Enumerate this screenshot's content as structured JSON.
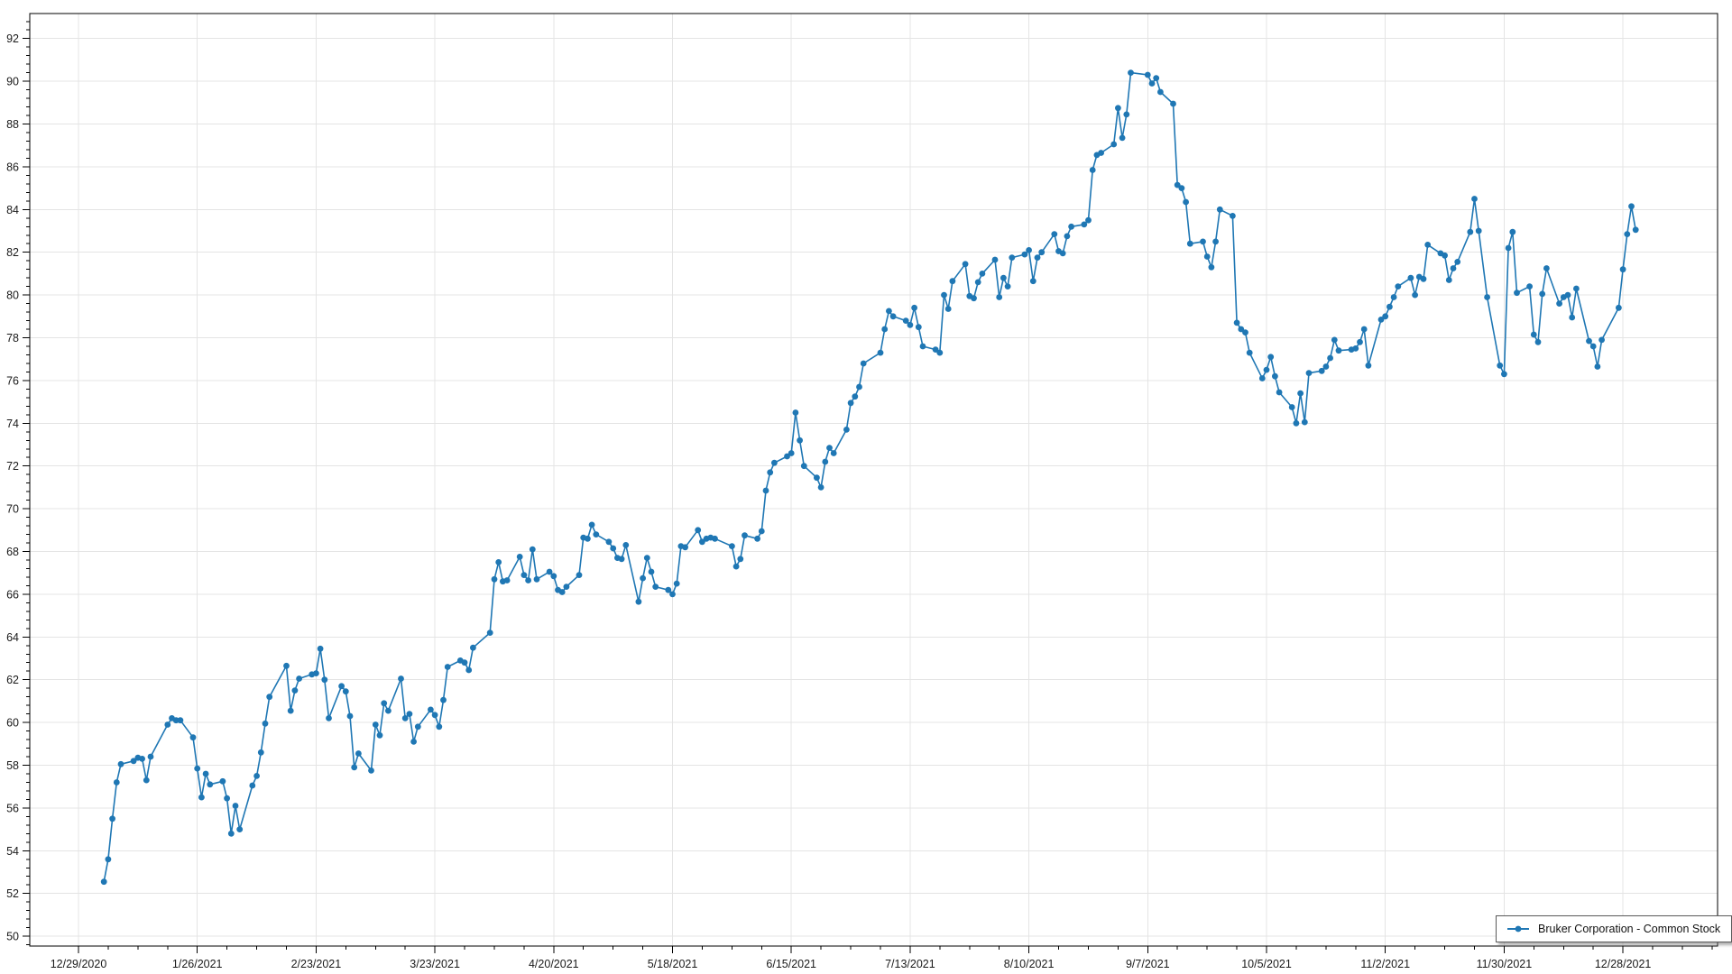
{
  "chart_data": {
    "type": "line",
    "title": "",
    "xlabel": "",
    "ylabel": "",
    "grid": true,
    "legend_position": "bottom-right",
    "x_axis": {
      "start_date": "2020-12-29",
      "tick_interval_days": 28,
      "minor_tick_interval_days": 7,
      "tick_labels": [
        "12/29/2020",
        "1/26/2021",
        "2/23/2021",
        "3/23/2021",
        "4/20/2021",
        "5/18/2021",
        "6/15/2021",
        "7/13/2021",
        "8/10/2021",
        "9/7/2021",
        "10/5/2021",
        "11/2/2021",
        "11/30/2021",
        "12/28/2021"
      ]
    },
    "y_axis": {
      "min": 49.54,
      "max": 93.17,
      "tick_min": 50,
      "tick_max": 92,
      "tick_step": 2,
      "minor_tick_step": 0.4,
      "tick_labels": [
        "50",
        "52",
        "54",
        "56",
        "58",
        "60",
        "62",
        "64",
        "66",
        "68",
        "70",
        "72",
        "74",
        "76",
        "78",
        "80",
        "82",
        "84",
        "86",
        "88",
        "90",
        "92"
      ]
    },
    "series": [
      {
        "name": "Bruker Corporation - Common Stock",
        "color": "#1f77b4",
        "marker": "circle",
        "points": [
          [
            "2021-01-04",
            52.55
          ],
          [
            "2021-01-05",
            53.6
          ],
          [
            "2021-01-06",
            55.5
          ],
          [
            "2021-01-07",
            57.2
          ],
          [
            "2021-01-08",
            58.05
          ],
          [
            "2021-01-11",
            58.2
          ],
          [
            "2021-01-12",
            58.35
          ],
          [
            "2021-01-13",
            58.3
          ],
          [
            "2021-01-14",
            57.3
          ],
          [
            "2021-01-15",
            58.4
          ],
          [
            "2021-01-19",
            59.9
          ],
          [
            "2021-01-20",
            60.2
          ],
          [
            "2021-01-21",
            60.1
          ],
          [
            "2021-01-22",
            60.1
          ],
          [
            "2021-01-25",
            59.3
          ],
          [
            "2021-01-26",
            57.85
          ],
          [
            "2021-01-27",
            56.5
          ],
          [
            "2021-01-28",
            57.6
          ],
          [
            "2021-01-29",
            57.1
          ],
          [
            "2021-02-01",
            57.25
          ],
          [
            "2021-02-02",
            56.45
          ],
          [
            "2021-02-03",
            54.8
          ],
          [
            "2021-02-04",
            56.1
          ],
          [
            "2021-02-05",
            55.0
          ],
          [
            "2021-02-08",
            57.05
          ],
          [
            "2021-02-09",
            57.5
          ],
          [
            "2021-02-10",
            58.6
          ],
          [
            "2021-02-11",
            59.95
          ],
          [
            "2021-02-12",
            61.2
          ],
          [
            "2021-02-16",
            62.65
          ],
          [
            "2021-02-17",
            60.55
          ],
          [
            "2021-02-18",
            61.5
          ],
          [
            "2021-02-19",
            62.05
          ],
          [
            "2021-02-22",
            62.25
          ],
          [
            "2021-02-23",
            62.3
          ],
          [
            "2021-02-24",
            63.45
          ],
          [
            "2021-02-25",
            62.0
          ],
          [
            "2021-02-26",
            60.2
          ],
          [
            "2021-03-01",
            61.7
          ],
          [
            "2021-03-02",
            61.45
          ],
          [
            "2021-03-03",
            60.3
          ],
          [
            "2021-03-04",
            57.9
          ],
          [
            "2021-03-05",
            58.55
          ],
          [
            "2021-03-08",
            57.75
          ],
          [
            "2021-03-09",
            59.9
          ],
          [
            "2021-03-10",
            59.4
          ],
          [
            "2021-03-11",
            60.9
          ],
          [
            "2021-03-12",
            60.55
          ],
          [
            "2021-03-15",
            62.05
          ],
          [
            "2021-03-16",
            60.2
          ],
          [
            "2021-03-17",
            60.4
          ],
          [
            "2021-03-18",
            59.1
          ],
          [
            "2021-03-19",
            59.8
          ],
          [
            "2021-03-22",
            60.6
          ],
          [
            "2021-03-23",
            60.35
          ],
          [
            "2021-03-24",
            59.8
          ],
          [
            "2021-03-25",
            61.05
          ],
          [
            "2021-03-26",
            62.6
          ],
          [
            "2021-03-29",
            62.9
          ],
          [
            "2021-03-30",
            62.8
          ],
          [
            "2021-03-31",
            62.45
          ],
          [
            "2021-04-01",
            63.5
          ],
          [
            "2021-04-05",
            64.2
          ],
          [
            "2021-04-06",
            66.7
          ],
          [
            "2021-04-07",
            67.5
          ],
          [
            "2021-04-08",
            66.6
          ],
          [
            "2021-04-09",
            66.65
          ],
          [
            "2021-04-12",
            67.75
          ],
          [
            "2021-04-13",
            66.9
          ],
          [
            "2021-04-14",
            66.65
          ],
          [
            "2021-04-15",
            68.1
          ],
          [
            "2021-04-16",
            66.7
          ],
          [
            "2021-04-19",
            67.05
          ],
          [
            "2021-04-20",
            66.85
          ],
          [
            "2021-04-21",
            66.2
          ],
          [
            "2021-04-22",
            66.1
          ],
          [
            "2021-04-23",
            66.35
          ],
          [
            "2021-04-26",
            66.9
          ],
          [
            "2021-04-27",
            68.65
          ],
          [
            "2021-04-28",
            68.6
          ],
          [
            "2021-04-29",
            69.25
          ],
          [
            "2021-04-30",
            68.8
          ],
          [
            "2021-05-03",
            68.45
          ],
          [
            "2021-05-04",
            68.15
          ],
          [
            "2021-05-05",
            67.7
          ],
          [
            "2021-05-06",
            67.65
          ],
          [
            "2021-05-07",
            68.3
          ],
          [
            "2021-05-10",
            65.65
          ],
          [
            "2021-05-11",
            66.75
          ],
          [
            "2021-05-12",
            67.7
          ],
          [
            "2021-05-13",
            67.05
          ],
          [
            "2021-05-14",
            66.35
          ],
          [
            "2021-05-17",
            66.2
          ],
          [
            "2021-05-18",
            66.0
          ],
          [
            "2021-05-19",
            66.5
          ],
          [
            "2021-05-20",
            68.25
          ],
          [
            "2021-05-21",
            68.2
          ],
          [
            "2021-05-24",
            69.0
          ],
          [
            "2021-05-25",
            68.45
          ],
          [
            "2021-05-26",
            68.6
          ],
          [
            "2021-05-27",
            68.65
          ],
          [
            "2021-05-28",
            68.6
          ],
          [
            "2021-06-01",
            68.25
          ],
          [
            "2021-06-02",
            67.3
          ],
          [
            "2021-06-03",
            67.65
          ],
          [
            "2021-06-04",
            68.75
          ],
          [
            "2021-06-07",
            68.6
          ],
          [
            "2021-06-08",
            68.95
          ],
          [
            "2021-06-09",
            70.85
          ],
          [
            "2021-06-10",
            71.7
          ],
          [
            "2021-06-11",
            72.15
          ],
          [
            "2021-06-14",
            72.45
          ],
          [
            "2021-06-15",
            72.6
          ],
          [
            "2021-06-16",
            74.5
          ],
          [
            "2021-06-17",
            73.2
          ],
          [
            "2021-06-18",
            72.0
          ],
          [
            "2021-06-21",
            71.45
          ],
          [
            "2021-06-22",
            71.0
          ],
          [
            "2021-06-23",
            72.2
          ],
          [
            "2021-06-24",
            72.85
          ],
          [
            "2021-06-25",
            72.6
          ],
          [
            "2021-06-28",
            73.7
          ],
          [
            "2021-06-29",
            74.95
          ],
          [
            "2021-06-30",
            75.25
          ],
          [
            "2021-07-01",
            75.7
          ],
          [
            "2021-07-02",
            76.8
          ],
          [
            "2021-07-06",
            77.3
          ],
          [
            "2021-07-07",
            78.4
          ],
          [
            "2021-07-08",
            79.25
          ],
          [
            "2021-07-09",
            79.0
          ],
          [
            "2021-07-12",
            78.8
          ],
          [
            "2021-07-13",
            78.6
          ],
          [
            "2021-07-14",
            79.4
          ],
          [
            "2021-07-15",
            78.5
          ],
          [
            "2021-07-16",
            77.6
          ],
          [
            "2021-07-19",
            77.45
          ],
          [
            "2021-07-20",
            77.3
          ],
          [
            "2021-07-21",
            80.0
          ],
          [
            "2021-07-22",
            79.35
          ],
          [
            "2021-07-23",
            80.65
          ],
          [
            "2021-07-26",
            81.45
          ],
          [
            "2021-07-27",
            79.95
          ],
          [
            "2021-07-28",
            79.85
          ],
          [
            "2021-07-29",
            80.6
          ],
          [
            "2021-07-30",
            81.0
          ],
          [
            "2021-08-02",
            81.65
          ],
          [
            "2021-08-03",
            79.9
          ],
          [
            "2021-08-04",
            80.8
          ],
          [
            "2021-08-05",
            80.4
          ],
          [
            "2021-08-06",
            81.75
          ],
          [
            "2021-08-09",
            81.9
          ],
          [
            "2021-08-10",
            82.1
          ],
          [
            "2021-08-11",
            80.65
          ],
          [
            "2021-08-12",
            81.75
          ],
          [
            "2021-08-13",
            82.0
          ],
          [
            "2021-08-16",
            82.85
          ],
          [
            "2021-08-17",
            82.05
          ],
          [
            "2021-08-18",
            81.95
          ],
          [
            "2021-08-19",
            82.75
          ],
          [
            "2021-08-20",
            83.2
          ],
          [
            "2021-08-23",
            83.3
          ],
          [
            "2021-08-24",
            83.5
          ],
          [
            "2021-08-25",
            85.85
          ],
          [
            "2021-08-26",
            86.55
          ],
          [
            "2021-08-27",
            86.65
          ],
          [
            "2021-08-30",
            87.05
          ],
          [
            "2021-08-31",
            88.75
          ],
          [
            "2021-09-01",
            87.35
          ],
          [
            "2021-09-02",
            88.45
          ],
          [
            "2021-09-03",
            90.4
          ],
          [
            "2021-09-07",
            90.3
          ],
          [
            "2021-09-08",
            89.9
          ],
          [
            "2021-09-09",
            90.15
          ],
          [
            "2021-09-10",
            89.5
          ],
          [
            "2021-09-13",
            88.95
          ],
          [
            "2021-09-14",
            85.15
          ],
          [
            "2021-09-15",
            85.0
          ],
          [
            "2021-09-16",
            84.35
          ],
          [
            "2021-09-17",
            82.4
          ],
          [
            "2021-09-20",
            82.5
          ],
          [
            "2021-09-21",
            81.8
          ],
          [
            "2021-09-22",
            81.3
          ],
          [
            "2021-09-23",
            82.5
          ],
          [
            "2021-09-24",
            84.0
          ],
          [
            "2021-09-27",
            83.7
          ],
          [
            "2021-09-28",
            78.7
          ],
          [
            "2021-09-29",
            78.4
          ],
          [
            "2021-09-30",
            78.25
          ],
          [
            "2021-10-01",
            77.3
          ],
          [
            "2021-10-04",
            76.1
          ],
          [
            "2021-10-05",
            76.5
          ],
          [
            "2021-10-06",
            77.1
          ],
          [
            "2021-10-07",
            76.2
          ],
          [
            "2021-10-08",
            75.45
          ],
          [
            "2021-10-11",
            74.75
          ],
          [
            "2021-10-12",
            74.0
          ],
          [
            "2021-10-13",
            75.4
          ],
          [
            "2021-10-14",
            74.05
          ],
          [
            "2021-10-15",
            76.35
          ],
          [
            "2021-10-18",
            76.45
          ],
          [
            "2021-10-19",
            76.65
          ],
          [
            "2021-10-20",
            77.05
          ],
          [
            "2021-10-21",
            77.9
          ],
          [
            "2021-10-22",
            77.4
          ],
          [
            "2021-10-25",
            77.45
          ],
          [
            "2021-10-26",
            77.5
          ],
          [
            "2021-10-27",
            77.8
          ],
          [
            "2021-10-28",
            78.4
          ],
          [
            "2021-10-29",
            76.7
          ],
          [
            "2021-11-01",
            78.85
          ],
          [
            "2021-11-02",
            79.0
          ],
          [
            "2021-11-03",
            79.45
          ],
          [
            "2021-11-04",
            79.9
          ],
          [
            "2021-11-05",
            80.4
          ],
          [
            "2021-11-08",
            80.8
          ],
          [
            "2021-11-09",
            80.0
          ],
          [
            "2021-11-10",
            80.85
          ],
          [
            "2021-11-11",
            80.75
          ],
          [
            "2021-11-12",
            82.35
          ],
          [
            "2021-11-15",
            81.95
          ],
          [
            "2021-11-16",
            81.85
          ],
          [
            "2021-11-17",
            80.7
          ],
          [
            "2021-11-18",
            81.25
          ],
          [
            "2021-11-19",
            81.55
          ],
          [
            "2021-11-22",
            82.95
          ],
          [
            "2021-11-23",
            84.5
          ],
          [
            "2021-11-24",
            83.0
          ],
          [
            "2021-11-26",
            79.9
          ],
          [
            "2021-11-29",
            76.7
          ],
          [
            "2021-11-30",
            76.3
          ],
          [
            "2021-12-01",
            82.2
          ],
          [
            "2021-12-02",
            82.95
          ],
          [
            "2021-12-03",
            80.1
          ],
          [
            "2021-12-06",
            80.4
          ],
          [
            "2021-12-07",
            78.15
          ],
          [
            "2021-12-08",
            77.8
          ],
          [
            "2021-12-09",
            80.05
          ],
          [
            "2021-12-10",
            81.25
          ],
          [
            "2021-12-13",
            79.6
          ],
          [
            "2021-12-14",
            79.9
          ],
          [
            "2021-12-15",
            80.0
          ],
          [
            "2021-12-16",
            78.95
          ],
          [
            "2021-12-17",
            80.3
          ],
          [
            "2021-12-20",
            77.85
          ],
          [
            "2021-12-21",
            77.6
          ],
          [
            "2021-12-22",
            76.65
          ],
          [
            "2021-12-23",
            77.9
          ],
          [
            "2021-12-27",
            79.4
          ],
          [
            "2021-12-28",
            81.2
          ],
          [
            "2021-12-29",
            82.85
          ],
          [
            "2021-12-30",
            84.15
          ],
          [
            "2021-12-31",
            83.05
          ]
        ]
      }
    ]
  },
  "legend": {
    "label": "Bruker Corporation - Common Stock"
  },
  "colors": {
    "series": "#1f77b4",
    "grid": "#e4e4e4",
    "axis": "#000000",
    "label": "#1a1a1a",
    "background": "#ffffff"
  }
}
